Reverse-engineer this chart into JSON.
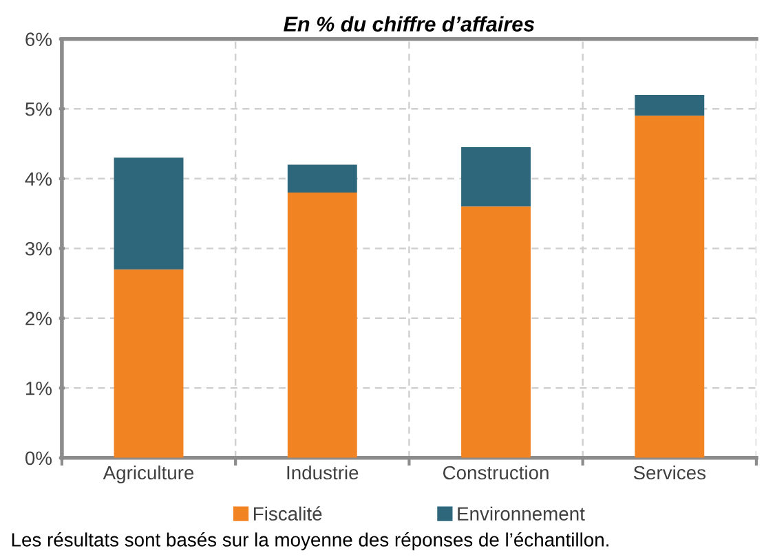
{
  "chart_data": {
    "type": "bar",
    "title": "En % du chiffre d’affaires",
    "categories": [
      "Agriculture",
      "Industrie",
      "Construction",
      "Services"
    ],
    "series": [
      {
        "name": "Fiscalité",
        "color": "#f28322",
        "values": [
          2.7,
          3.8,
          3.6,
          4.9
        ]
      },
      {
        "name": "Environnement",
        "color": "#2e667c",
        "values": [
          1.6,
          0.4,
          0.85,
          0.3
        ]
      }
    ],
    "stacked": true,
    "ylim": [
      0,
      6
    ],
    "yticks": [
      {
        "value": 0,
        "label": "0%"
      },
      {
        "value": 1,
        "label": "1%"
      },
      {
        "value": 2,
        "label": "2%"
      },
      {
        "value": 3,
        "label": "3%"
      },
      {
        "value": 4,
        "label": "4%"
      },
      {
        "value": 5,
        "label": "5%"
      },
      {
        "value": 6,
        "label": "6%"
      }
    ],
    "grid": true,
    "legend": "bottom",
    "annotations": [
      "Les résultats sont basés sur la moyenne des réponses de l’échantillon."
    ]
  }
}
